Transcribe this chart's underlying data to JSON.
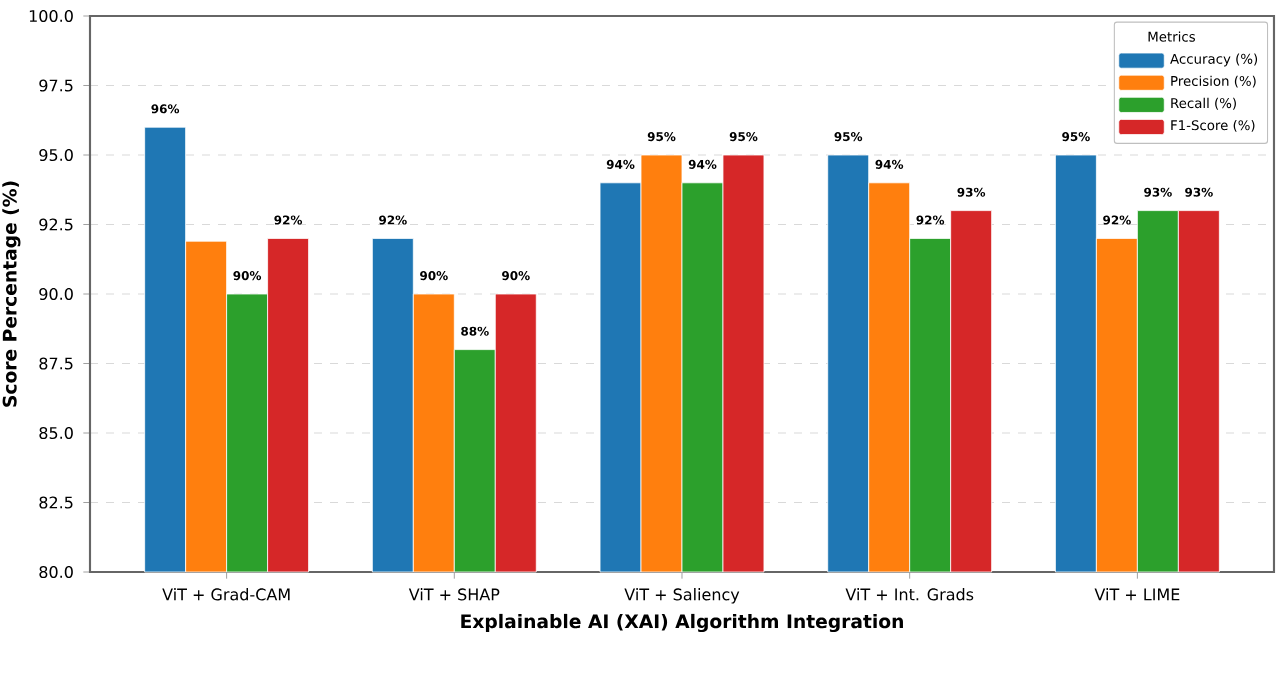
{
  "chart_data": {
    "type": "bar",
    "xlabel": "Explainable AI (XAI) Algorithm Integration",
    "ylabel": "Score Percentage (%)",
    "legend_title": "Metrics",
    "categories": [
      "ViT + Grad-CAM",
      "ViT + SHAP",
      "ViT + Saliency",
      "ViT + Int. Grads",
      "ViT + LIME"
    ],
    "series": [
      {
        "name": "Accuracy (%)",
        "color": "#1f77b4",
        "values": [
          96,
          92,
          94,
          95,
          95
        ],
        "value_labels": [
          "96%",
          "92%",
          "94%",
          "95%",
          "95%"
        ]
      },
      {
        "name": "Precision (%)",
        "color": "#ff7f0e",
        "values": [
          91.9,
          90,
          95,
          94,
          92
        ],
        "value_labels": [
          null,
          "90%",
          "95%",
          "94%",
          "92%"
        ]
      },
      {
        "name": "Recall (%)",
        "color": "#2ca02c",
        "values": [
          90,
          88,
          94,
          92,
          93
        ],
        "value_labels": [
          "90%",
          "88%",
          "94%",
          "92%",
          "93%"
        ]
      },
      {
        "name": "F1-Score (%)",
        "color": "#d62728",
        "values": [
          92,
          90,
          95,
          93,
          93
        ],
        "value_labels": [
          "92%",
          "90%",
          "95%",
          "93%",
          "93%"
        ]
      }
    ],
    "ylim": [
      80,
      100
    ],
    "yticks": [
      {
        "value": 80,
        "label": "80.0"
      },
      {
        "value": 82.5,
        "label": "82.5"
      },
      {
        "value": 85,
        "label": "85.0"
      },
      {
        "value": 87.5,
        "label": "87.5"
      },
      {
        "value": 90,
        "label": "90.0"
      },
      {
        "value": 92.5,
        "label": "92.5"
      },
      {
        "value": 95,
        "label": "95.0"
      },
      {
        "value": 97.5,
        "label": "97.5"
      },
      {
        "value": 100,
        "label": "100.0"
      }
    ],
    "grid": "y",
    "legend": "top right"
  }
}
